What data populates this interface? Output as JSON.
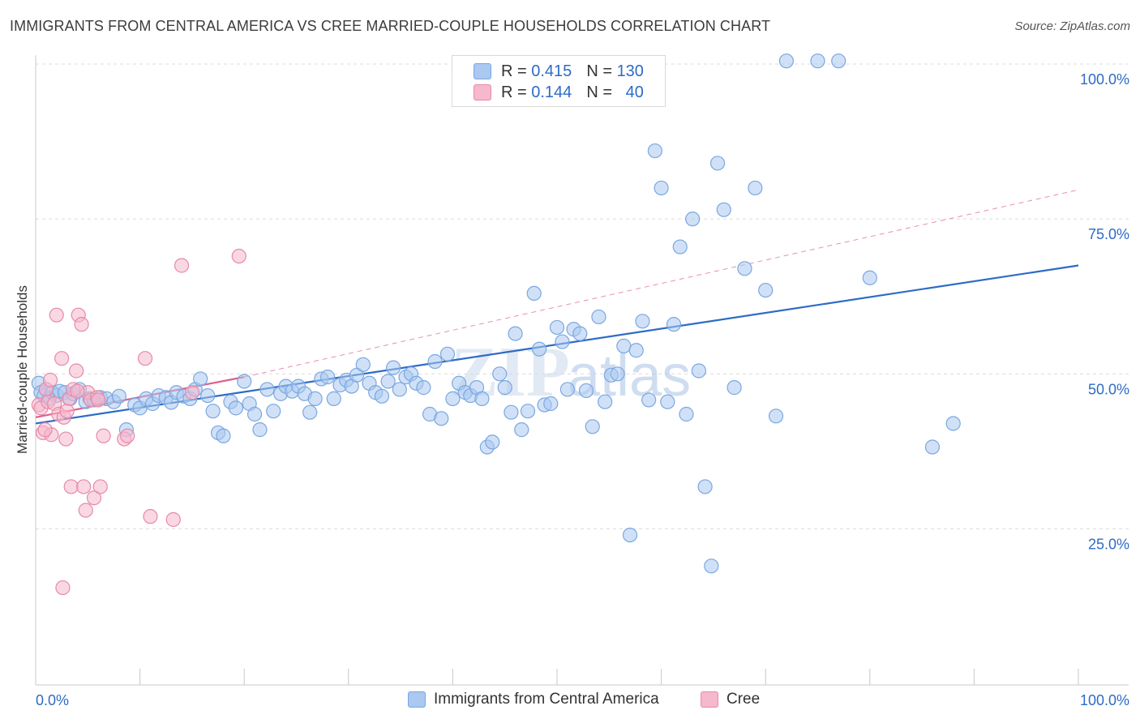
{
  "header": {
    "title": "IMMIGRANTS FROM CENTRAL AMERICA VS CREE MARRIED-COUPLE HOUSEHOLDS CORRELATION CHART",
    "source": "Source: ZipAtlas.com"
  },
  "legend": {
    "rows": [
      {
        "r_label": "R =",
        "r_value": "0.415",
        "n_label": "N =",
        "n_value": "130"
      },
      {
        "r_label": "R =",
        "r_value": "0.144",
        "n_label": "N =",
        "n_value": "40"
      }
    ]
  },
  "colors": {
    "blue_fill": "#aac8f0",
    "blue_stroke": "#7aa7e0",
    "blue_line": "#2e6bc6",
    "pink_fill": "#f5b8cc",
    "pink_stroke": "#e68aa8",
    "pink_line": "#e0608a",
    "tick_label": "#2e6bc6",
    "grid": "#dcdcdc"
  },
  "chart_data": {
    "type": "scatter",
    "xlabel": "",
    "ylabel": "Married-couple Households",
    "xlim": [
      0,
      100
    ],
    "ylim": [
      0,
      105
    ],
    "x_tick_labels": [
      "0.0%",
      "100.0%"
    ],
    "y_tick_labels": [
      "25.0%",
      "50.0%",
      "75.0%",
      "100.0%"
    ],
    "y_ticks": [
      25,
      50,
      75,
      100
    ],
    "grid": "horizontal dashed",
    "legend_position": "top-center",
    "watermark": "ZIPatlas",
    "series": [
      {
        "name": "Immigrants from Central America",
        "color": "blue",
        "trend": {
          "x": [
            0,
            100
          ],
          "y": [
            42.0,
            67.5
          ]
        },
        "points": [
          [
            0.3,
            48.5
          ],
          [
            0.5,
            47.0
          ],
          [
            0.8,
            46.5
          ],
          [
            1.0,
            47.5
          ],
          [
            1.3,
            46.0
          ],
          [
            1.6,
            47.0
          ],
          [
            2.0,
            46.5
          ],
          [
            2.3,
            47.2
          ],
          [
            2.8,
            47.0
          ],
          [
            3.3,
            46.0
          ],
          [
            3.6,
            46.8
          ],
          [
            4.2,
            47.5
          ],
          [
            4.8,
            45.5
          ],
          [
            5.2,
            46.0
          ],
          [
            5.6,
            45.8
          ],
          [
            6.2,
            46.2
          ],
          [
            6.8,
            46.0
          ],
          [
            7.5,
            45.5
          ],
          [
            8.0,
            46.4
          ],
          [
            8.7,
            41.0
          ],
          [
            9.5,
            45.0
          ],
          [
            10.0,
            44.5
          ],
          [
            10.6,
            46.0
          ],
          [
            11.2,
            45.2
          ],
          [
            11.8,
            46.5
          ],
          [
            12.5,
            46.2
          ],
          [
            13.0,
            45.4
          ],
          [
            13.5,
            47.0
          ],
          [
            14.2,
            46.4
          ],
          [
            14.8,
            46.0
          ],
          [
            15.3,
            47.5
          ],
          [
            15.8,
            49.2
          ],
          [
            16.5,
            46.5
          ],
          [
            17.0,
            44.0
          ],
          [
            17.5,
            40.5
          ],
          [
            18.0,
            40.0
          ],
          [
            18.7,
            45.5
          ],
          [
            19.2,
            44.5
          ],
          [
            20.0,
            48.8
          ],
          [
            20.5,
            45.2
          ],
          [
            21.0,
            43.5
          ],
          [
            21.5,
            41.0
          ],
          [
            22.2,
            47.5
          ],
          [
            22.8,
            44.0
          ],
          [
            23.5,
            46.8
          ],
          [
            24.0,
            48.0
          ],
          [
            24.6,
            47.2
          ],
          [
            25.2,
            48.0
          ],
          [
            25.8,
            46.8
          ],
          [
            26.3,
            43.8
          ],
          [
            26.8,
            46.0
          ],
          [
            27.4,
            49.2
          ],
          [
            28.0,
            49.5
          ],
          [
            28.6,
            46.0
          ],
          [
            29.2,
            48.2
          ],
          [
            29.8,
            49.0
          ],
          [
            30.3,
            48.0
          ],
          [
            30.8,
            49.8
          ],
          [
            31.4,
            51.5
          ],
          [
            32.0,
            48.5
          ],
          [
            32.6,
            47.0
          ],
          [
            33.2,
            46.4
          ],
          [
            33.8,
            48.8
          ],
          [
            34.3,
            51.0
          ],
          [
            34.9,
            47.5
          ],
          [
            35.5,
            49.5
          ],
          [
            36.0,
            50.0
          ],
          [
            36.5,
            48.5
          ],
          [
            37.2,
            47.8
          ],
          [
            37.8,
            43.5
          ],
          [
            38.3,
            52.0
          ],
          [
            38.9,
            42.8
          ],
          [
            39.5,
            53.2
          ],
          [
            40.0,
            46.0
          ],
          [
            40.6,
            48.5
          ],
          [
            41.2,
            47.0
          ],
          [
            41.7,
            46.5
          ],
          [
            42.3,
            47.8
          ],
          [
            42.8,
            46.0
          ],
          [
            43.3,
            38.2
          ],
          [
            43.8,
            39.0
          ],
          [
            44.5,
            50.0
          ],
          [
            45.0,
            47.8
          ],
          [
            45.6,
            43.8
          ],
          [
            46.0,
            56.5
          ],
          [
            46.6,
            41.0
          ],
          [
            47.2,
            44.0
          ],
          [
            47.8,
            63.0
          ],
          [
            48.3,
            54.0
          ],
          [
            48.8,
            45.0
          ],
          [
            49.4,
            45.2
          ],
          [
            50.0,
            57.5
          ],
          [
            50.5,
            55.2
          ],
          [
            51.0,
            47.5
          ],
          [
            51.6,
            57.2
          ],
          [
            52.2,
            56.5
          ],
          [
            52.8,
            47.3
          ],
          [
            53.4,
            41.5
          ],
          [
            54.0,
            59.2
          ],
          [
            54.6,
            45.5
          ],
          [
            55.2,
            49.8
          ],
          [
            55.8,
            50.0
          ],
          [
            56.4,
            54.5
          ],
          [
            57.0,
            24.0
          ],
          [
            57.6,
            53.8
          ],
          [
            58.2,
            58.5
          ],
          [
            58.8,
            45.8
          ],
          [
            59.4,
            86.0
          ],
          [
            60.0,
            80.0
          ],
          [
            60.6,
            45.5
          ],
          [
            61.2,
            58.0
          ],
          [
            61.8,
            70.5
          ],
          [
            62.4,
            43.5
          ],
          [
            63.0,
            75.0
          ],
          [
            63.6,
            50.5
          ],
          [
            64.2,
            31.8
          ],
          [
            64.8,
            19.0
          ],
          [
            65.4,
            84.0
          ],
          [
            66.0,
            76.5
          ],
          [
            67.0,
            47.8
          ],
          [
            68.0,
            67.0
          ],
          [
            69.0,
            80.0
          ],
          [
            70.0,
            63.5
          ],
          [
            71.0,
            43.2
          ],
          [
            72.0,
            100.5
          ],
          [
            75.0,
            100.5
          ],
          [
            77.0,
            100.5
          ],
          [
            80.0,
            65.5
          ],
          [
            86.0,
            38.2
          ],
          [
            88.0,
            42.0
          ]
        ]
      },
      {
        "name": "Cree",
        "color": "pink",
        "trend": {
          "x": [
            0,
            20
          ],
          "y": [
            43.0,
            49.5
          ]
        },
        "points": [
          [
            0.3,
            45.0
          ],
          [
            0.5,
            44.5
          ],
          [
            0.7,
            40.5
          ],
          [
            1.0,
            47.5
          ],
          [
            1.2,
            45.5
          ],
          [
            1.5,
            40.2
          ],
          [
            1.8,
            45.2
          ],
          [
            2.0,
            59.5
          ],
          [
            2.2,
            43.5
          ],
          [
            2.5,
            52.5
          ],
          [
            2.7,
            43.0
          ],
          [
            2.9,
            39.5
          ],
          [
            3.2,
            46.0
          ],
          [
            3.4,
            31.8
          ],
          [
            3.6,
            47.5
          ],
          [
            3.9,
            50.5
          ],
          [
            4.1,
            59.5
          ],
          [
            4.4,
            58.0
          ],
          [
            4.6,
            31.8
          ],
          [
            4.8,
            28.0
          ],
          [
            5.0,
            47.0
          ],
          [
            5.3,
            45.8
          ],
          [
            5.6,
            30.0
          ],
          [
            5.9,
            46.2
          ],
          [
            6.2,
            31.8
          ],
          [
            6.5,
            40.0
          ],
          [
            8.5,
            39.5
          ],
          [
            8.8,
            40.0
          ],
          [
            10.5,
            52.5
          ],
          [
            11.0,
            27.0
          ],
          [
            13.2,
            26.5
          ],
          [
            14.0,
            67.5
          ],
          [
            15.0,
            47.0
          ],
          [
            19.5,
            69.0
          ],
          [
            2.6,
            15.5
          ],
          [
            1.4,
            49.0
          ],
          [
            3.0,
            44.0
          ],
          [
            0.9,
            41.0
          ],
          [
            4.0,
            47.2
          ],
          [
            6.0,
            45.8
          ]
        ]
      }
    ]
  }
}
